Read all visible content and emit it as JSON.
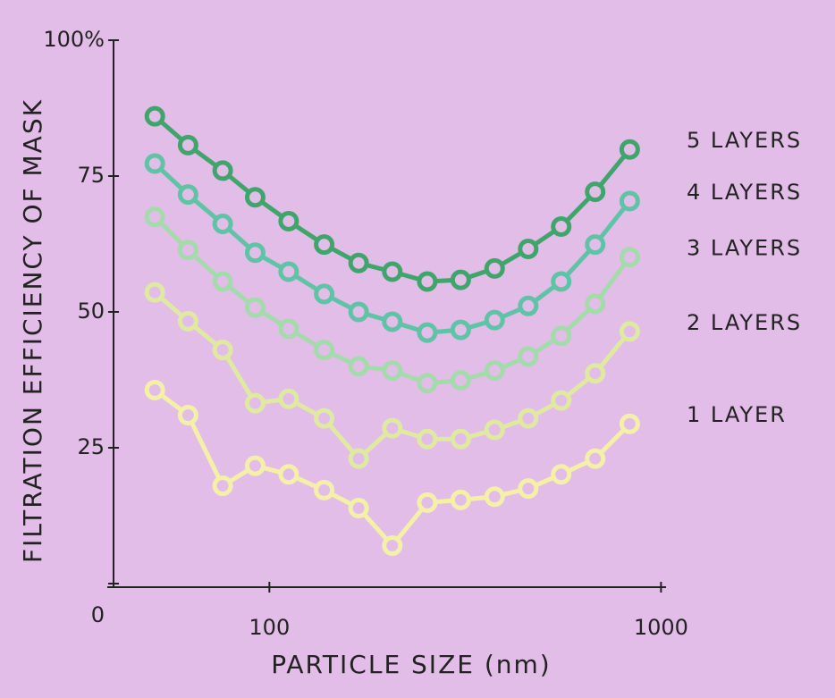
{
  "chart_data": {
    "type": "line",
    "xlabel": "PARTICLE SIZE (nm)",
    "ylabel": "FILTRATION EFFICIENCY OF MASK",
    "xscale": "log",
    "xlim": [
      40,
      1030
    ],
    "xticks": [
      100,
      1000
    ],
    "ylim": [
      0,
      100
    ],
    "yticks": [
      0,
      25,
      50,
      75,
      {
        "value": 100,
        "label": "100%"
      }
    ],
    "x": [
      51,
      62,
      76,
      92,
      112,
      138,
      169,
      206,
      253,
      308,
      376,
      458,
      556,
      679,
      832
    ],
    "series": [
      {
        "name": "5 LAYERS",
        "color": "#3fa56b",
        "values": [
          86.0,
          80.7,
          76.0,
          71.1,
          66.7,
          62.4,
          59.0,
          57.4,
          55.6,
          55.9,
          58.0,
          61.6,
          65.7,
          72.1,
          79.9
        ]
      },
      {
        "name": "4 LAYERS",
        "color": "#5fc3a6",
        "values": [
          77.3,
          71.6,
          66.2,
          60.9,
          57.4,
          53.3,
          50.0,
          48.2,
          46.2,
          46.7,
          48.5,
          51.1,
          55.6,
          62.4,
          70.4
        ]
      },
      {
        "name": "3 LAYERS",
        "color": "#a3dbab",
        "values": [
          67.5,
          61.4,
          55.6,
          50.8,
          46.9,
          43.0,
          40.0,
          39.2,
          36.9,
          37.4,
          39.2,
          41.8,
          45.6,
          51.5,
          60.1
        ]
      },
      {
        "name": "2 LAYERS",
        "color": "#dfeaa0",
        "values": [
          53.6,
          48.3,
          43.0,
          33.2,
          34.0,
          30.4,
          23.0,
          28.6,
          26.6,
          26.6,
          28.3,
          30.4,
          33.7,
          38.7,
          46.4
        ]
      },
      {
        "name": "1 LAYER",
        "color": "#f5f0a8",
        "values": [
          35.6,
          31.0,
          18.0,
          21.7,
          20.1,
          17.2,
          13.9,
          7.0,
          14.9,
          15.4,
          16.0,
          17.5,
          20.1,
          23.0,
          29.4
        ]
      }
    ]
  }
}
